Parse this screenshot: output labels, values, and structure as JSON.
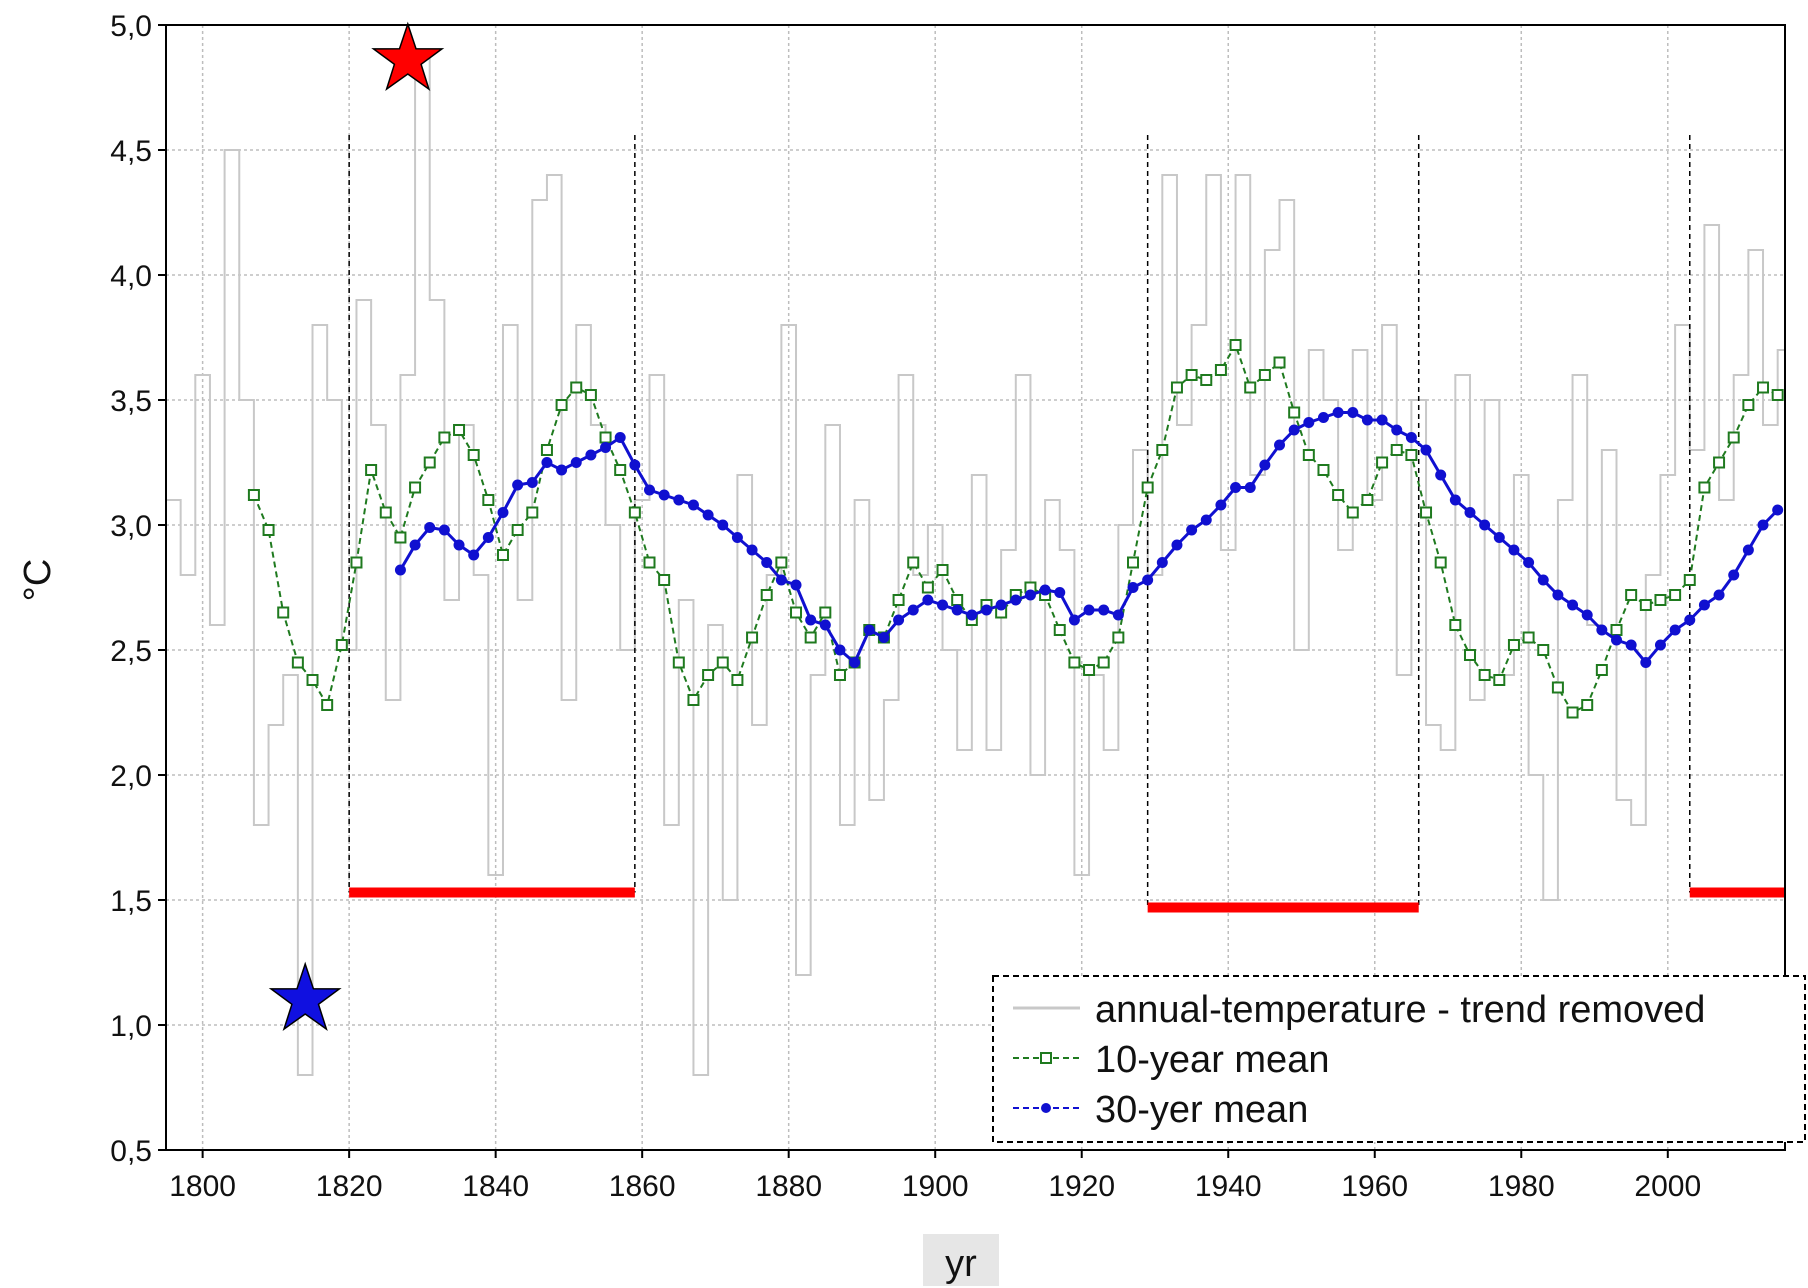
{
  "chart_data": {
    "type": "line",
    "title": "",
    "xlabel": "yr",
    "ylabel": "°C",
    "xlim": [
      1795,
      2016
    ],
    "ylim": [
      0.5,
      5.0
    ],
    "xticks": [
      1800,
      1820,
      1840,
      1860,
      1880,
      1900,
      1920,
      1940,
      1960,
      1980,
      2000
    ],
    "xtick_labels": [
      "1800",
      "1820",
      "1840",
      "1860",
      "1880",
      "1900",
      "1920",
      "1940",
      "1960",
      "1980",
      "2000"
    ],
    "yticks": [
      0.5,
      1.0,
      1.5,
      2.0,
      2.5,
      3.0,
      3.5,
      4.0,
      4.5,
      5.0
    ],
    "ytick_labels": [
      "0,5",
      "1,0",
      "1,5",
      "2,0",
      "2,5",
      "3,0",
      "3,5",
      "4,0",
      "4,5",
      "5,0"
    ],
    "grid": true,
    "legend_position": "bottom-right",
    "colors": {
      "annual": "#c8c8c8",
      "mean10": "#1f7a1f",
      "mean30": "#1010d0",
      "period": "#ff0000",
      "star_max": "#ff0000",
      "star_min": "#1010e0"
    },
    "series": [
      {
        "name": "annual-temperature - trend removed",
        "style": "step",
        "x": [
          1795,
          1797,
          1799,
          1801,
          1803,
          1805,
          1807,
          1809,
          1811,
          1813,
          1815,
          1817,
          1819,
          1821,
          1823,
          1825,
          1827,
          1829,
          1831,
          1833,
          1835,
          1837,
          1839,
          1841,
          1843,
          1845,
          1847,
          1849,
          1851,
          1853,
          1855,
          1857,
          1859,
          1861,
          1863,
          1865,
          1867,
          1869,
          1871,
          1873,
          1875,
          1877,
          1879,
          1881,
          1883,
          1885,
          1887,
          1889,
          1891,
          1893,
          1895,
          1897,
          1899,
          1901,
          1903,
          1905,
          1907,
          1909,
          1911,
          1913,
          1915,
          1917,
          1919,
          1921,
          1923,
          1925,
          1927,
          1929,
          1931,
          1933,
          1935,
          1937,
          1939,
          1941,
          1943,
          1945,
          1947,
          1949,
          1951,
          1953,
          1955,
          1957,
          1959,
          1961,
          1963,
          1965,
          1967,
          1969,
          1971,
          1973,
          1975,
          1977,
          1979,
          1981,
          1983,
          1985,
          1987,
          1989,
          1991,
          1993,
          1995,
          1997,
          1999,
          2001,
          2003,
          2005,
          2007,
          2009,
          2011,
          2013,
          2015
        ],
        "values": [
          3.1,
          2.8,
          3.6,
          2.6,
          4.5,
          3.5,
          1.8,
          2.2,
          2.4,
          0.8,
          3.8,
          3.5,
          2.5,
          3.9,
          3.4,
          2.3,
          3.6,
          4.9,
          3.9,
          2.7,
          3.4,
          2.8,
          1.6,
          3.8,
          2.7,
          4.3,
          4.4,
          2.3,
          3.8,
          3.4,
          3.0,
          2.5,
          3.1,
          3.6,
          1.8,
          2.7,
          0.8,
          2.6,
          1.5,
          3.2,
          2.2,
          2.8,
          3.8,
          1.2,
          2.4,
          3.4,
          1.8,
          3.1,
          1.9,
          2.3,
          3.6,
          2.8,
          3.0,
          2.5,
          2.1,
          3.2,
          2.1,
          2.9,
          3.6,
          2.0,
          3.1,
          2.9,
          1.6,
          2.4,
          2.1,
          3.0,
          3.3,
          2.8,
          4.4,
          3.4,
          3.8,
          4.4,
          2.9,
          4.4,
          3.2,
          4.1,
          4.3,
          2.5,
          3.7,
          3.5,
          2.9,
          3.7,
          3.1,
          3.8,
          2.4,
          3.5,
          2.2,
          2.1,
          3.6,
          2.3,
          3.5,
          2.4,
          3.2,
          2.0,
          1.5,
          3.1,
          3.6,
          2.6,
          3.3,
          1.9,
          1.8,
          2.8,
          3.2,
          3.8,
          3.3,
          4.2,
          3.1,
          3.6,
          4.1,
          3.4,
          3.7
        ]
      },
      {
        "name": "10-year mean",
        "style": "dashed-markers",
        "x": [
          1807,
          1809,
          1811,
          1813,
          1815,
          1817,
          1819,
          1821,
          1823,
          1825,
          1827,
          1829,
          1831,
          1833,
          1835,
          1837,
          1839,
          1841,
          1843,
          1845,
          1847,
          1849,
          1851,
          1853,
          1855,
          1857,
          1859,
          1861,
          1863,
          1865,
          1867,
          1869,
          1871,
          1873,
          1875,
          1877,
          1879,
          1881,
          1883,
          1885,
          1887,
          1889,
          1891,
          1893,
          1895,
          1897,
          1899,
          1901,
          1903,
          1905,
          1907,
          1909,
          1911,
          1913,
          1915,
          1917,
          1919,
          1921,
          1923,
          1925,
          1927,
          1929,
          1931,
          1933,
          1935,
          1937,
          1939,
          1941,
          1943,
          1945,
          1947,
          1949,
          1951,
          1953,
          1955,
          1957,
          1959,
          1961,
          1963,
          1965,
          1967,
          1969,
          1971,
          1973,
          1975,
          1977,
          1979,
          1981,
          1983,
          1985,
          1987,
          1989,
          1991,
          1993,
          1995,
          1997,
          1999,
          2001,
          2003,
          2005,
          2007,
          2009,
          2011,
          2013,
          2015
        ],
        "values": [
          3.12,
          2.98,
          2.65,
          2.45,
          2.38,
          2.28,
          2.52,
          2.85,
          3.22,
          3.05,
          2.95,
          3.15,
          3.25,
          3.35,
          3.38,
          3.28,
          3.1,
          2.88,
          2.98,
          3.05,
          3.3,
          3.48,
          3.55,
          3.52,
          3.35,
          3.22,
          3.05,
          2.85,
          2.78,
          2.45,
          2.3,
          2.4,
          2.45,
          2.38,
          2.55,
          2.72,
          2.85,
          2.65,
          2.55,
          2.65,
          2.4,
          2.45,
          2.58,
          2.55,
          2.7,
          2.85,
          2.75,
          2.82,
          2.7,
          2.62,
          2.68,
          2.65,
          2.72,
          2.75,
          2.72,
          2.58,
          2.45,
          2.42,
          2.45,
          2.55,
          2.85,
          3.15,
          3.3,
          3.55,
          3.6,
          3.58,
          3.62,
          3.72,
          3.55,
          3.6,
          3.65,
          3.45,
          3.28,
          3.22,
          3.12,
          3.05,
          3.1,
          3.25,
          3.3,
          3.28,
          3.05,
          2.85,
          2.6,
          2.48,
          2.4,
          2.38,
          2.52,
          2.55,
          2.5,
          2.35,
          2.25,
          2.28,
          2.42,
          2.58,
          2.72,
          2.68,
          2.7,
          2.72,
          2.78,
          3.15,
          3.25,
          3.35,
          3.48,
          3.55,
          3.52
        ]
      },
      {
        "name": "30-yer mean",
        "style": "dashed-markers",
        "x": [
          1827,
          1829,
          1831,
          1833,
          1835,
          1837,
          1839,
          1841,
          1843,
          1845,
          1847,
          1849,
          1851,
          1853,
          1855,
          1857,
          1859,
          1861,
          1863,
          1865,
          1867,
          1869,
          1871,
          1873,
          1875,
          1877,
          1879,
          1881,
          1883,
          1885,
          1887,
          1889,
          1891,
          1893,
          1895,
          1897,
          1899,
          1901,
          1903,
          1905,
          1907,
          1909,
          1911,
          1913,
          1915,
          1917,
          1919,
          1921,
          1923,
          1925,
          1927,
          1929,
          1931,
          1933,
          1935,
          1937,
          1939,
          1941,
          1943,
          1945,
          1947,
          1949,
          1951,
          1953,
          1955,
          1957,
          1959,
          1961,
          1963,
          1965,
          1967,
          1969,
          1971,
          1973,
          1975,
          1977,
          1979,
          1981,
          1983,
          1985,
          1987,
          1989,
          1991,
          1993,
          1995,
          1997,
          1999,
          2001,
          2003,
          2005,
          2007,
          2009,
          2011,
          2013,
          2015
        ],
        "values": [
          2.82,
          2.92,
          2.99,
          2.98,
          2.92,
          2.88,
          2.95,
          3.05,
          3.16,
          3.17,
          3.25,
          3.22,
          3.25,
          3.28,
          3.31,
          3.35,
          3.24,
          3.14,
          3.12,
          3.1,
          3.08,
          3.04,
          3.0,
          2.95,
          2.9,
          2.85,
          2.78,
          2.76,
          2.62,
          2.6,
          2.5,
          2.45,
          2.58,
          2.55,
          2.62,
          2.66,
          2.7,
          2.68,
          2.66,
          2.64,
          2.66,
          2.68,
          2.7,
          2.72,
          2.74,
          2.73,
          2.62,
          2.66,
          2.66,
          2.64,
          2.75,
          2.78,
          2.85,
          2.92,
          2.98,
          3.02,
          3.08,
          3.15,
          3.15,
          3.24,
          3.32,
          3.38,
          3.41,
          3.43,
          3.45,
          3.45,
          3.42,
          3.42,
          3.38,
          3.35,
          3.3,
          3.2,
          3.1,
          3.05,
          3.0,
          2.95,
          2.9,
          2.85,
          2.78,
          2.72,
          2.68,
          2.64,
          2.58,
          2.54,
          2.52,
          2.45,
          2.52,
          2.58,
          2.62,
          2.68,
          2.72,
          2.8,
          2.9,
          3.0,
          3.06
        ]
      }
    ],
    "highlight_periods": [
      {
        "start": 1820,
        "end": 1859,
        "y": 1.53
      },
      {
        "start": 1929,
        "end": 1966,
        "y": 1.47
      },
      {
        "start": 2003,
        "end": 2016,
        "y": 1.53
      }
    ],
    "markers": [
      {
        "shape": "star",
        "x": 1828,
        "y": 4.86,
        "color": "#ff0000"
      },
      {
        "shape": "star",
        "x": 1814,
        "y": 1.1,
        "color": "#1010e0"
      }
    ]
  }
}
